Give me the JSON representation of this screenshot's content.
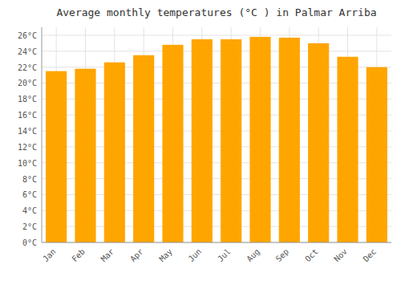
{
  "chart_data": {
    "type": "bar",
    "title": "Average monthly temperatures (°C ) in Palmar Arriba",
    "categories": [
      "Jan",
      "Feb",
      "Mar",
      "Apr",
      "May",
      "Jun",
      "Jul",
      "Aug",
      "Sep",
      "Oct",
      "Nov",
      "Dec"
    ],
    "values": [
      21.5,
      21.8,
      22.6,
      23.5,
      24.8,
      25.5,
      25.5,
      25.8,
      25.7,
      25.0,
      23.3,
      22.0
    ],
    "color": "#FFA500",
    "ylim": [
      0,
      27
    ],
    "yticks": [
      {
        "value": 0,
        "label": "0°C"
      },
      {
        "value": 2,
        "label": "2°C"
      },
      {
        "value": 4,
        "label": "4°C"
      },
      {
        "value": 6,
        "label": "6°C"
      },
      {
        "value": 8,
        "label": "8°C"
      },
      {
        "value": 10,
        "label": "10°C"
      },
      {
        "value": 12,
        "label": "12°C"
      },
      {
        "value": 14,
        "label": "14°C"
      },
      {
        "value": 16,
        "label": "16°C"
      },
      {
        "value": 18,
        "label": "18°C"
      },
      {
        "value": 20,
        "label": "20°C"
      },
      {
        "value": 22,
        "label": "22°C"
      },
      {
        "value": 24,
        "label": "24°C"
      },
      {
        "value": 26,
        "label": "26°C"
      }
    ],
    "grid": true
  }
}
